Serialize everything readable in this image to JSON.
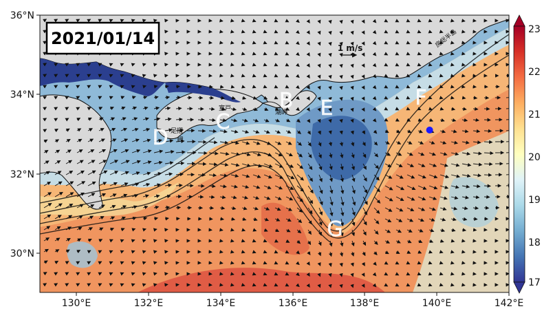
{
  "figure": {
    "date": "2021/01/14",
    "scale_arrow_label": "1 m/s",
    "lon_range": [
      129,
      142
    ],
    "lat_range": [
      29,
      36
    ],
    "lat_ticks": [
      "36°N",
      "34°N",
      "32°N",
      "30°N"
    ],
    "lon_ticks": [
      "130°E",
      "132°E",
      "134°E",
      "136°E",
      "138°E",
      "140°E",
      "142°E"
    ],
    "colorbar": {
      "ticks": [
        "23",
        "22",
        "21",
        "20",
        "19",
        "18",
        "17"
      ],
      "min": 17,
      "max": 23,
      "extend": "both",
      "colormap": "RdYlBu_r",
      "colors": [
        "#313695",
        "#4575b4",
        "#74add1",
        "#abd9e9",
        "#e0f3f8",
        "#ffffbf",
        "#fee090",
        "#fdae61",
        "#f46d43",
        "#d73027",
        "#a50026"
      ]
    },
    "point_labels": {
      "B": "B",
      "C": "C",
      "D": "D",
      "E": "E",
      "F": "F",
      "G": "G"
    },
    "place_names": {
      "muroto": "室戸",
      "ashizuri_1": "足摺",
      "ashizuri_2": "岬",
      "shionomisaki": "潮岬",
      "boso": "房総半島"
    },
    "marker": {
      "lon": 139.8,
      "lat": 33.1,
      "color": "#1a1aff"
    },
    "land_color": "#d9d9d9"
  }
}
